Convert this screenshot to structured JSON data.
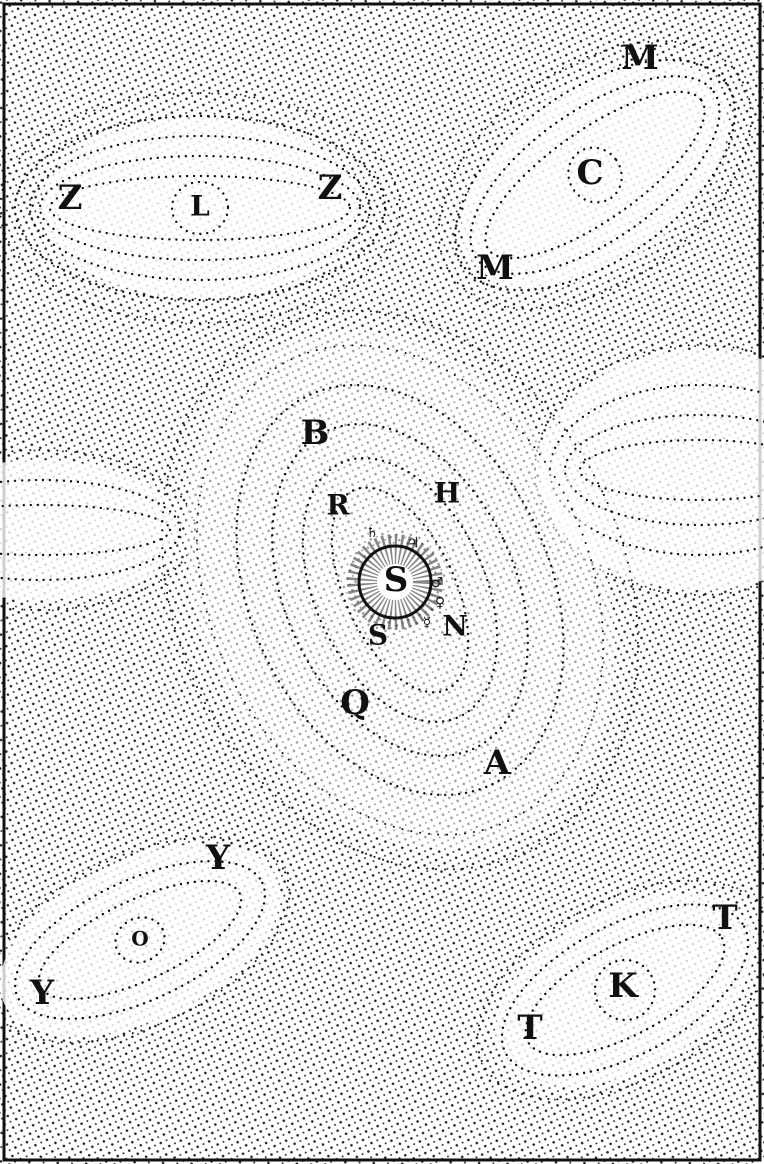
{
  "labels": {
    "z_left": "Z",
    "l": "L",
    "z_right": "Z",
    "m_top": "M",
    "c": "C",
    "m_bottom": "M",
    "b": "B",
    "r": "R",
    "h": "H",
    "s_sun": "S",
    "s_lower": "S",
    "n": "N",
    "q": "Q",
    "a": "A",
    "saturn": "♄",
    "jupiter": "♃",
    "mars": "♂",
    "venus": "♀",
    "mercury": "☿",
    "y_top": "Y",
    "o": "O",
    "y_left": "Y",
    "t_right": "T",
    "k": "K",
    "t_bottom": "T"
  }
}
